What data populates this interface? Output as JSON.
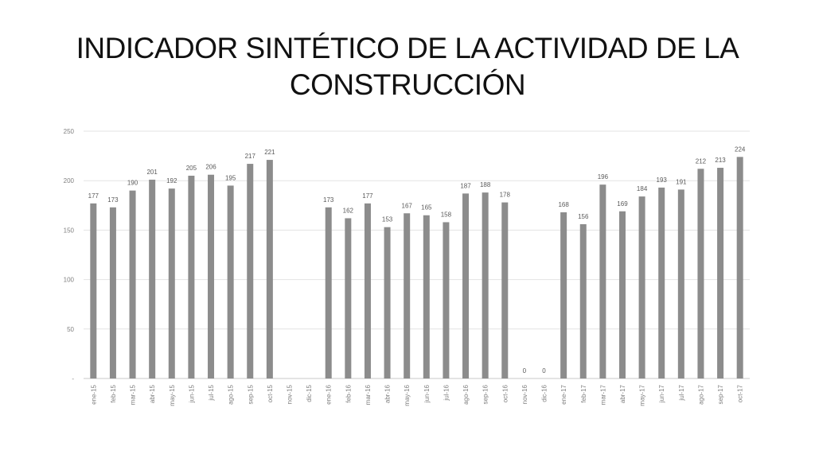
{
  "title": {
    "line1": "INDICADOR SINTÉTICO DE LA ACTIVIDAD DE LA",
    "line2": "CONSTRUCCIÓN"
  },
  "chart_data": {
    "type": "bar",
    "title": "INDICADOR SINTÉTICO DE LA ACTIVIDAD DE LA CONSTRUCCIÓN",
    "xlabel": "",
    "ylabel": "",
    "ylim": [
      0,
      250
    ],
    "yticks": [
      0,
      50,
      100,
      150,
      200,
      250
    ],
    "ytick_labels": [
      "-",
      "50",
      "100",
      "150",
      "200",
      "250"
    ],
    "grid": true,
    "legend": "none",
    "bar_color": "#8c8c8c",
    "categories": [
      "ene-15",
      "feb-15",
      "mar-15",
      "abr-15",
      "may-15",
      "jun-15",
      "jul-15",
      "ago-15",
      "sep-15",
      "oct-15",
      "nov-15",
      "dic-15",
      "ene-16",
      "feb-16",
      "mar-16",
      "abr-16",
      "may-16",
      "jun-16",
      "jul-16",
      "ago-16",
      "sep-16",
      "oct-16",
      "nov-16",
      "dic-16",
      "ene-17",
      "feb-17",
      "mar-17",
      "abr-17",
      "may-17",
      "jun-17",
      "jul-17",
      "ago-17",
      "sep-17",
      "oct-17"
    ],
    "values": [
      177,
      173,
      190,
      201,
      192,
      205,
      206,
      195,
      217,
      221,
      null,
      null,
      173,
      162,
      177,
      153,
      167,
      165,
      158,
      187,
      188,
      178,
      0,
      0,
      168,
      156,
      196,
      169,
      184,
      193,
      191,
      212,
      213,
      224
    ],
    "data_labels": [
      "177",
      "173",
      "190",
      "201",
      "192",
      "205",
      "206",
      "195",
      "217",
      "221",
      "",
      "",
      "173",
      "162",
      "177",
      "153",
      "167",
      "165",
      "158",
      "187",
      "188",
      "178",
      "0",
      "0",
      "168",
      "156",
      "196",
      "169",
      "184",
      "193",
      "191",
      "212",
      "213",
      "224"
    ]
  }
}
